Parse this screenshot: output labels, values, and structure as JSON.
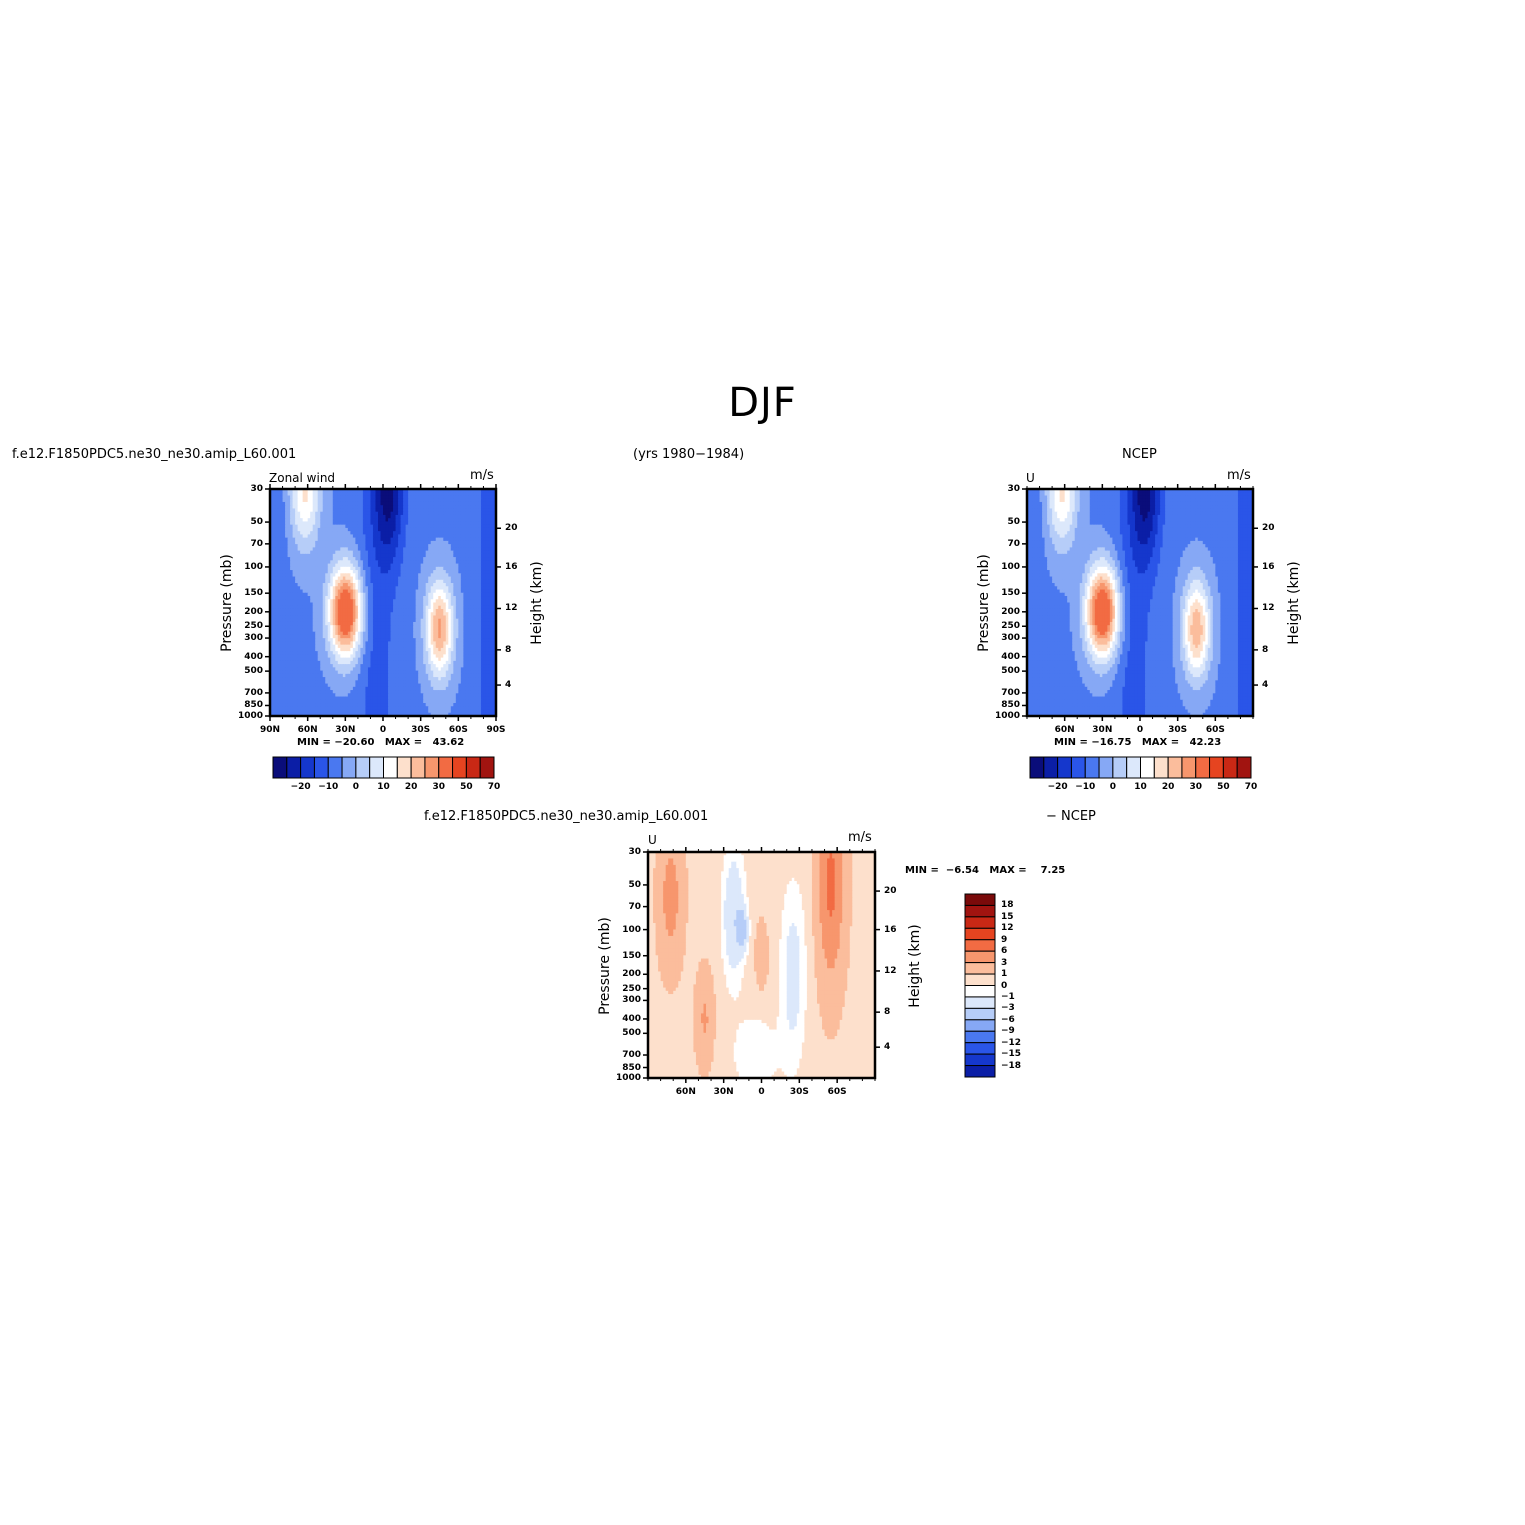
{
  "main_title": "DJF",
  "header": {
    "model_case": "f.e12.F1850PDC5.ne30_ne30.amip_L60.001",
    "years": "(yrs 1980−1984)",
    "obs_name": "NCEP",
    "diff_case": "f.e12.F1850PDC5.ne30_ne30.amip_L60.001",
    "diff_obs": "− NCEP"
  },
  "chart_data": [
    {
      "type": "heatmap",
      "panel": "model",
      "title_left": "Zonal wind",
      "units": "m/s",
      "ylabel": "Pressure (mb)",
      "ylabel_right": "Height (km)",
      "x_ticks": [
        "90N",
        "60N",
        "30N",
        "0",
        "30S",
        "60S",
        "90S"
      ],
      "y_ticks": [
        "30",
        "50",
        "70",
        "100",
        "150",
        "200",
        "250",
        "300",
        "400",
        "500",
        "700",
        "850",
        "1000"
      ],
      "y_ticks_right": [
        "20",
        "16",
        "12",
        "8",
        "4"
      ],
      "stats": {
        "min_label": "MIN =",
        "min": "−20.60",
        "max_label": "MAX =",
        "max": "43.62"
      },
      "jets": [
        {
          "lat": 30,
          "pressure": 200,
          "value": 43.62
        },
        {
          "lat": -45,
          "pressure": 250,
          "value": 30
        }
      ],
      "colorbar_labels": [
        "−20",
        "−10",
        "0",
        "10",
        "20",
        "30",
        "50",
        "70"
      ]
    },
    {
      "type": "heatmap",
      "panel": "obs",
      "title_left": "U",
      "units": "m/s",
      "ylabel": "Pressure (mb)",
      "ylabel_right": "Height (km)",
      "x_ticks": [
        "60N",
        "30N",
        "0",
        "30S",
        "60S"
      ],
      "y_ticks": [
        "30",
        "50",
        "70",
        "100",
        "150",
        "200",
        "250",
        "300",
        "400",
        "500",
        "700",
        "850",
        "1000"
      ],
      "y_ticks_right": [
        "20",
        "16",
        "12",
        "8",
        "4"
      ],
      "stats": {
        "min_label": "MIN =",
        "min": "−16.75",
        "max_label": "MAX =",
        "max": "42.23"
      },
      "jets": [
        {
          "lat": 30,
          "pressure": 200,
          "value": 42.23
        },
        {
          "lat": -45,
          "pressure": 250,
          "value": 28
        }
      ],
      "colorbar_labels": [
        "−20",
        "−10",
        "0",
        "10",
        "20",
        "30",
        "50",
        "70"
      ]
    },
    {
      "type": "heatmap",
      "panel": "difference",
      "title_left": "U",
      "units": "m/s",
      "ylabel": "Pressure (mb)",
      "ylabel_right": "Height (km)",
      "x_ticks": [
        "60N",
        "30N",
        "0",
        "30S",
        "60S"
      ],
      "y_ticks": [
        "30",
        "50",
        "70",
        "100",
        "150",
        "200",
        "250",
        "300",
        "400",
        "500",
        "700",
        "850",
        "1000"
      ],
      "y_ticks_right": [
        "20",
        "16",
        "12",
        "8",
        "4"
      ],
      "stats": {
        "min_label": "MIN =",
        "min": "−6.54",
        "max_label": "MAX =",
        "max": "7.25"
      },
      "colorbar_labels": [
        "18",
        "15",
        "12",
        "9",
        "6",
        "3",
        "1",
        "0",
        "−1",
        "−3",
        "−6",
        "−9",
        "−12",
        "−15",
        "−18"
      ]
    }
  ],
  "colors": {
    "full_scale": [
      "#0a0d7a",
      "#0b1ea6",
      "#1537cc",
      "#2a55e8",
      "#4a78f0",
      "#86a8f5",
      "#b6cdf8",
      "#dce8fb",
      "#ffffff",
      "#fde0cc",
      "#fbbd9c",
      "#f7966d",
      "#f26b43",
      "#e64420",
      "#c92815",
      "#a11410",
      "#7a0a0a"
    ],
    "diff_scale": [
      "#7a0a0a",
      "#a11410",
      "#c92815",
      "#e64420",
      "#f26b43",
      "#f7966d",
      "#fbbd9c",
      "#fde0cc",
      "#ffffff",
      "#dce8fb",
      "#b6cdf8",
      "#86a8f5",
      "#4a78f0",
      "#2a55e8",
      "#1537cc",
      "#0b1ea6"
    ]
  }
}
